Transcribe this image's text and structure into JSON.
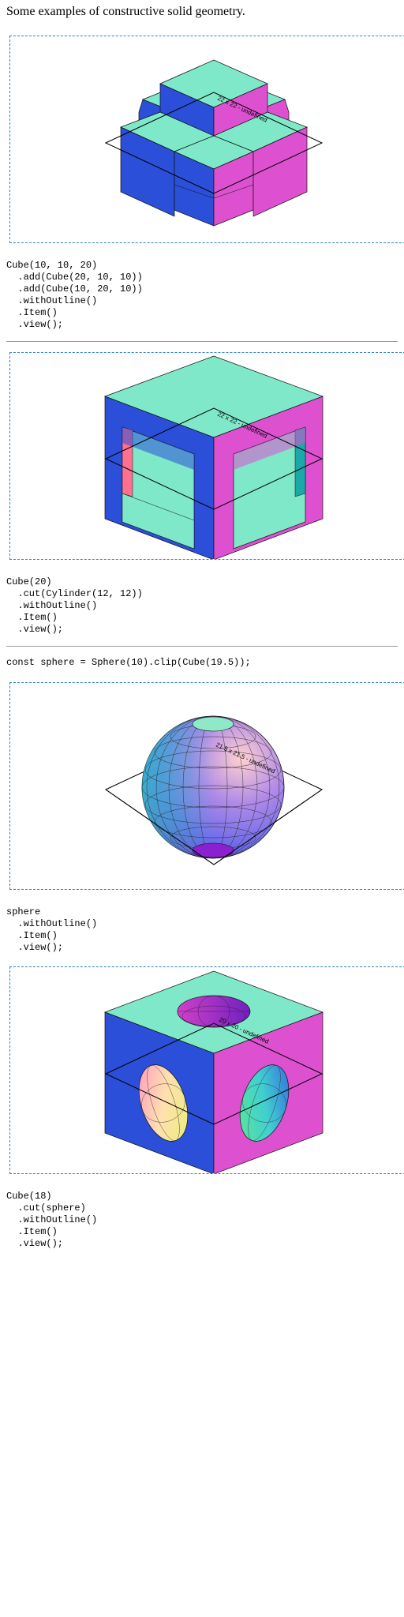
{
  "intro": "Some examples of constructive solid geometry.",
  "examples": [
    {
      "label": "22 x 22 - undefined",
      "code": [
        "Cube(10, 10, 20)",
        "  .add(Cube(20, 10, 10))",
        "  .add(Cube(10, 20, 10))",
        "  .withOutline()",
        "  .Item()",
        "  .view();"
      ]
    },
    {
      "label": "22 x 22 - undefined",
      "code": [
        "Cube(20)",
        "  .cut(Cylinder(12, 12))",
        "  .withOutline()",
        "  .Item()",
        "  .view();"
      ]
    },
    {
      "label": "21.5 x 21.5 - undefined",
      "code": [
        "sphere",
        "  .withOutline()",
        "  .Item()",
        "  .view();"
      ]
    },
    {
      "label": "20 x 20 - undefined",
      "code": [
        "Cube(18)",
        "  .cut(sphere)",
        "  .withOutline()",
        "  .Item()",
        "  .view();"
      ]
    }
  ],
  "sphere_def": "const sphere = Sphere(10).clip(Cube(19.5));",
  "colors": {
    "top": "#7fe8c8",
    "left": "#2b4fd8",
    "right": "#dd50d0",
    "frame": "#2f7fd0"
  }
}
